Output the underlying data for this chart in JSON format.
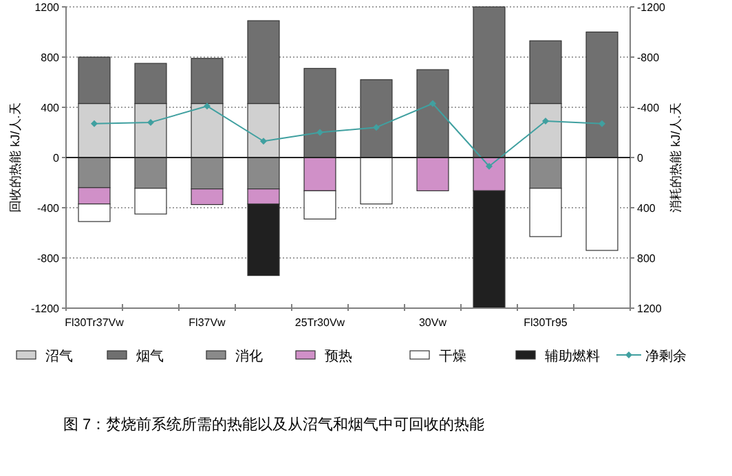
{
  "chart_data": {
    "type": "bar",
    "stacked": true,
    "categories": [
      "Fl30Tr37Vw",
      null,
      "Fl37Vw",
      null,
      "25Tr30Vw",
      null,
      "30Vw",
      null,
      "Fl30Tr95",
      null
    ],
    "series": [
      {
        "name": "沼气",
        "color": "#d0d0d0",
        "values": [
          430,
          430,
          430,
          430,
          0,
          0,
          0,
          0,
          430,
          0
        ]
      },
      {
        "name": "烟气",
        "color": "#707070",
        "values": [
          370,
          320,
          360,
          660,
          710,
          620,
          700,
          1200,
          500,
          1000
        ]
      },
      {
        "name": "消化",
        "color": "#8a8a8a",
        "values": [
          -240,
          -245,
          -250,
          -250,
          0,
          0,
          0,
          0,
          -245,
          0
        ]
      },
      {
        "name": "预热",
        "color": "#d090c8",
        "values": [
          -130,
          0,
          -125,
          -120,
          -265,
          0,
          -265,
          -265,
          0,
          0
        ]
      },
      {
        "name": "干燥",
        "color": "#ffffff",
        "values": [
          -140,
          -205,
          0,
          0,
          -225,
          -370,
          0,
          0,
          -385,
          -740
        ]
      },
      {
        "name": "辅助燃料",
        "color": "#202020",
        "values": [
          0,
          0,
          0,
          -570,
          0,
          0,
          0,
          -935,
          0,
          0
        ]
      },
      {
        "name": "净剩余",
        "type": "line",
        "color": "#40a0a0",
        "marker": "diamond",
        "values": [
          270,
          280,
          410,
          130,
          200,
          240,
          430,
          -70,
          290,
          270
        ]
      }
    ],
    "ylim": [
      -1200,
      1200
    ],
    "yticks": [
      -1200,
      -800,
      -400,
      0,
      400,
      800,
      1200
    ],
    "y2lim": [
      1200,
      -1200
    ],
    "y2ticks": [
      -1200,
      -800,
      -400,
      0,
      400,
      800,
      1200
    ],
    "ylabel": "回收的热能 kJ/人.天",
    "y2label": "消耗的热能 kJ/人.天",
    "grid": "y",
    "legend": "bottom",
    "annotations": [
      "图 7：焚烧前系统所需的热能以及从沼气和烟气中可回收的热能"
    ]
  }
}
